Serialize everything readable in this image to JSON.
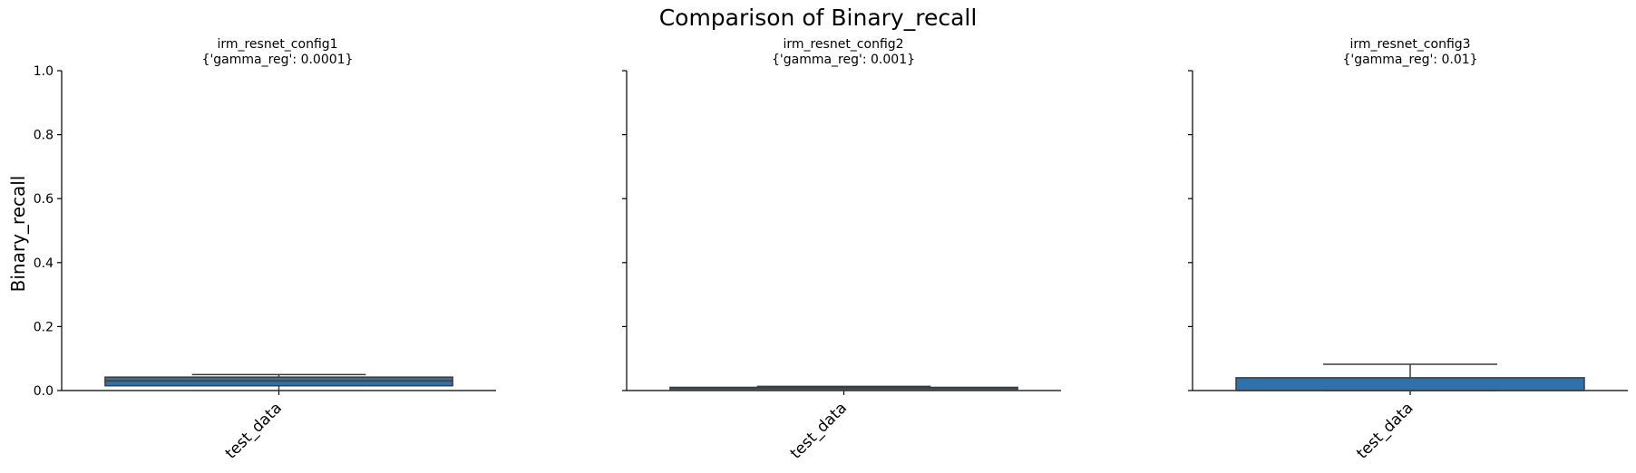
{
  "figure": {
    "title": "Comparison of Binary_recall",
    "ylabel": "Binary_recall"
  },
  "colors": {
    "box_fill": "#2f72aa",
    "box_edge": "#3d3d3d",
    "axis": "#000000"
  },
  "chart_data": [
    {
      "type": "box",
      "title": "irm_resnet_config1",
      "subtitle": "{'gamma_reg': 0.0001}",
      "xlabel": "",
      "ylabel": "Binary_recall",
      "categories": [
        "test_data"
      ],
      "ylim": [
        0,
        1
      ],
      "yticks": [
        "0.0",
        "0.2",
        "0.4",
        "0.6",
        "0.8",
        "1.0"
      ],
      "boxes": [
        {
          "category": "test_data",
          "whisker_low": 0.0,
          "q1": 0.015,
          "median": 0.03,
          "q3": 0.042,
          "whisker_high": 0.05
        }
      ]
    },
    {
      "type": "box",
      "title": "irm_resnet_config2",
      "subtitle": "{'gamma_reg': 0.001}",
      "xlabel": "",
      "ylabel": "",
      "categories": [
        "test_data"
      ],
      "ylim": [
        0,
        1
      ],
      "yticks": [
        "0.0",
        "0.2",
        "0.4",
        "0.6",
        "0.8",
        "1.0"
      ],
      "boxes": [
        {
          "category": "test_data",
          "whisker_low": 0.0,
          "q1": 0.002,
          "median": 0.008,
          "q3": 0.01,
          "whisker_high": 0.013
        }
      ]
    },
    {
      "type": "box",
      "title": "irm_resnet_config3",
      "subtitle": "{'gamma_reg': 0.01}",
      "xlabel": "",
      "ylabel": "",
      "categories": [
        "test_data"
      ],
      "ylim": [
        0,
        1
      ],
      "yticks": [
        "0.0",
        "0.2",
        "0.4",
        "0.6",
        "0.8",
        "1.0"
      ],
      "boxes": [
        {
          "category": "test_data",
          "whisker_low": 0.0,
          "q1": 0.0,
          "median": 0.0,
          "q3": 0.04,
          "whisker_high": 0.082
        }
      ]
    }
  ]
}
